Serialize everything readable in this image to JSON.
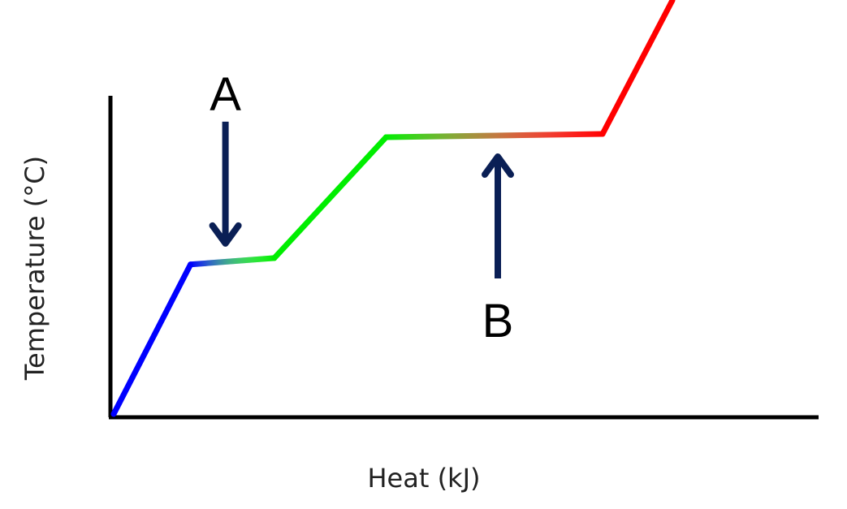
{
  "chart_data": {
    "type": "line",
    "xlabel": "Heat (kJ)",
    "ylabel": "Temperature (°C)",
    "title": "",
    "grid": false,
    "legend": "none",
    "xlim": [
      0,
      10
    ],
    "ylim": [
      0,
      10
    ],
    "segments": [
      {
        "x": [
          0,
          1.1
        ],
        "y": [
          0,
          4.7
        ],
        "color": "#0000ff"
      },
      {
        "x": [
          1.1,
          2.3
        ],
        "y": [
          4.7,
          4.9
        ],
        "color_from": "#0000ff",
        "color_to": "#00ee00",
        "blend": "blue-green"
      },
      {
        "x": [
          2.3,
          3.9
        ],
        "y": [
          4.9,
          8.7
        ],
        "color": "#00ee00"
      },
      {
        "x": [
          3.9,
          7.0
        ],
        "y": [
          8.7,
          8.8
        ],
        "color_from": "#00ee00",
        "color_to": "#ff0000",
        "blend": "green-red"
      },
      {
        "x": [
          7.0,
          8.0
        ],
        "y": [
          8.8,
          13.0
        ],
        "color": "#ff0000"
      }
    ],
    "annotations": [
      {
        "label": "A",
        "x": 1.6,
        "y": 4.8,
        "arrow": "down"
      },
      {
        "label": "B",
        "x": 5.5,
        "y": 8.7,
        "arrow": "up"
      }
    ],
    "arrow_color": "#0a1f55"
  }
}
